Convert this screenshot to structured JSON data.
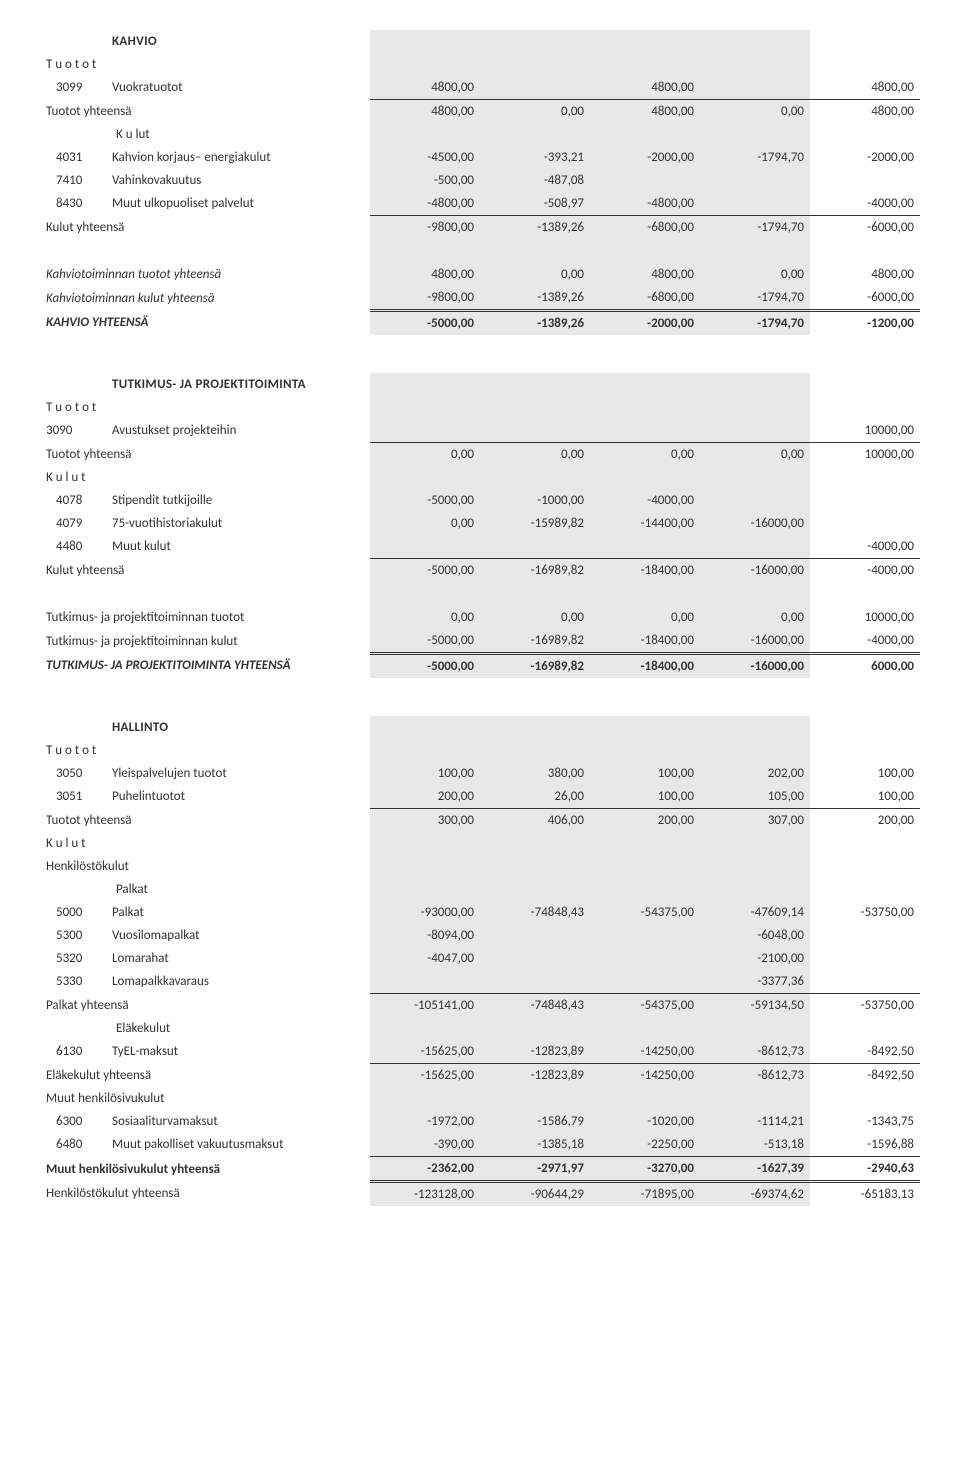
{
  "kahvio": {
    "title": "KAHVIO",
    "tuotot_label": "T u o t o t",
    "r3099": {
      "code": "3099",
      "label": "Vuokratuotot",
      "c1": "4800,00",
      "c3": "4800,00",
      "c5": "4800,00"
    },
    "tuotot_yht": {
      "label": "Tuotot yhteensä",
      "c1": "4800,00",
      "c2": "0,00",
      "c3": "4800,00",
      "c4": "0,00",
      "c5": "4800,00"
    },
    "kulut_label": "K u lut",
    "r4031": {
      "code": "4031",
      "label": "Kahvion korjaus– energiakulut",
      "c1": "-4500,00",
      "c2": "-393,21",
      "c3": "-2000,00",
      "c4": "-1794,70",
      "c5": "-2000,00"
    },
    "r7410": {
      "code": "7410",
      "label": "Vahinkovakuutus",
      "c1": "-500,00",
      "c2": "-487,08"
    },
    "r8430": {
      "code": "8430",
      "label": "Muut ulkopuoliset palvelut",
      "c1": "-4800,00",
      "c2": "-508,97",
      "c3": "-4800,00",
      "c5": "-4000,00"
    },
    "kulut_yht": {
      "label": "Kulut yhteensä",
      "c1": "-9800,00",
      "c2": "-1389,26",
      "c3": "-6800,00",
      "c4": "-1794,70",
      "c5": "-6000,00"
    },
    "toim_tuotot": {
      "label": "Kahviotoiminnan tuotot yhteensä",
      "c1": "4800,00",
      "c2": "0,00",
      "c3": "4800,00",
      "c4": "0,00",
      "c5": "4800,00"
    },
    "toim_kulut": {
      "label": "Kahviotoiminnan kulut yhteensä",
      "c1": "-9800,00",
      "c2": "-1389,26",
      "c3": "-6800,00",
      "c4": "-1794,70",
      "c5": "-6000,00"
    },
    "yhteensa": {
      "label": "KAHVIO YHTEENSÄ",
      "c1": "-5000,00",
      "c2": "-1389,26",
      "c3": "-2000,00",
      "c4": "-1794,70",
      "c5": "-1200,00"
    }
  },
  "tutkimus": {
    "title": "TUTKIMUS- JA PROJEKTITOIMINTA",
    "tuotot_label": "T u o t o t",
    "r3090": {
      "code": "3090",
      "label": "Avustukset projekteihin",
      "c5": "10000,00"
    },
    "tuotot_yht": {
      "label": "Tuotot yhteensä",
      "c1": "0,00",
      "c2": "0,00",
      "c3": "0,00",
      "c4": "0,00",
      "c5": "10000,00"
    },
    "kulut_label": "K u l u t",
    "r4078": {
      "code": "4078",
      "label": "Stipendit tutkijoille",
      "c1": "-5000,00",
      "c2": "-1000,00",
      "c3": "-4000,00"
    },
    "r4079": {
      "code": "4079",
      "label": "75-vuotihistoriakulut",
      "c1": "0,00",
      "c2": "-15989,82",
      "c3": "-14400,00",
      "c4": "-16000,00"
    },
    "r4480": {
      "code": "4480",
      "label": "Muut kulut",
      "c5": "-4000,00"
    },
    "kulut_yht": {
      "label": "Kulut yhteensä",
      "c1": "-5000,00",
      "c2": "-16989,82",
      "c3": "-18400,00",
      "c4": "-16000,00",
      "c5": "-4000,00"
    },
    "toim_tuotot": {
      "label": "Tutkimus- ja projektitoiminnan tuotot",
      "c1": "0,00",
      "c2": "0,00",
      "c3": "0,00",
      "c4": "0,00",
      "c5": "10000,00"
    },
    "toim_kulut": {
      "label": "Tutkimus- ja projektitoiminnan kulut",
      "c1": "-5000,00",
      "c2": "-16989,82",
      "c3": "-18400,00",
      "c4": "-16000,00",
      "c5": "-4000,00"
    },
    "yhteensa": {
      "label": "TUTKIMUS- JA PROJEKTITOIMINTA YHTEENSÄ",
      "c1": "-5000,00",
      "c2": "-16989,82",
      "c3": "-18400,00",
      "c4": "-16000,00",
      "c5": "6000,00"
    }
  },
  "hallinto": {
    "title": "HALLINTO",
    "tuotot_label": "T u o t o t",
    "r3050": {
      "code": "3050",
      "label": "Yleispalvelujen tuotot",
      "c1": "100,00",
      "c2": "380,00",
      "c3": "100,00",
      "c4": "202,00",
      "c5": "100,00"
    },
    "r3051": {
      "code": "3051",
      "label": "Puhelintuotot",
      "c1": "200,00",
      "c2": "26,00",
      "c3": "100,00",
      "c4": "105,00",
      "c5": "100,00"
    },
    "tuotot_yht": {
      "label": "Tuotot yhteensä",
      "c1": "300,00",
      "c2": "406,00",
      "c3": "200,00",
      "c4": "307,00",
      "c5": "200,00"
    },
    "kulut_label": "K u l u t",
    "hk_label": "Henkilöstökulut",
    "palkat_label": "Palkat",
    "r5000": {
      "code": "5000",
      "label": "Palkat",
      "c1": "-93000,00",
      "c2": "-74848,43",
      "c3": "-54375,00",
      "c4": "-47609,14",
      "c5": "-53750,00"
    },
    "r5300": {
      "code": "5300",
      "label": "Vuosilomapalkat",
      "c1": "-8094,00",
      "c4": "-6048,00"
    },
    "r5320": {
      "code": "5320",
      "label": "Lomarahat",
      "c1": "-4047,00",
      "c4": "-2100,00"
    },
    "r5330": {
      "code": "5330",
      "label": "Lomapalkkavaraus",
      "c4": "-3377,36"
    },
    "palkat_yht": {
      "label": "Palkat yhteensä",
      "c1": "-105141,00",
      "c2": "-74848,43",
      "c3": "-54375,00",
      "c4": "-59134,50",
      "c5": "-53750,00"
    },
    "elake_label": "Eläkekulut",
    "r6130": {
      "code": "6130",
      "label": "TyEL-maksut",
      "c1": "-15625,00",
      "c2": "-12823,89",
      "c3": "-14250,00",
      "c4": "-8612,73",
      "c5": "-8492,50"
    },
    "elake_yht": {
      "label": "Eläkekulut yhteensä",
      "c1": "-15625,00",
      "c2": "-12823,89",
      "c3": "-14250,00",
      "c4": "-8612,73",
      "c5": "-8492,50"
    },
    "muut_hs_label": "Muut henkilösivukulut",
    "r6300": {
      "code": "6300",
      "label": "Sosiaaliturvamaksut",
      "c1": "-1972,00",
      "c2": "-1586,79",
      "c3": "-1020,00",
      "c4": "-1114,21",
      "c5": "-1343,75"
    },
    "r6480": {
      "code": "6480",
      "label": "Muut pakolliset  vakuutusmaksut",
      "c1": "-390,00",
      "c2": "-1385,18",
      "c3": "-2250,00",
      "c4": "-513,18",
      "c5": "-1596,88"
    },
    "muut_hs_yht": {
      "label": "Muut henkilösivukulut yhteensä",
      "c1": "-2362,00",
      "c2": "-2971,97",
      "c3": "-3270,00",
      "c4": "-1627,39",
      "c5": "-2940,63"
    },
    "hk_yht": {
      "label": "Henkilöstökulut yhteensä",
      "c1": "-123128,00",
      "c2": "-90644,29",
      "c3": "-71895,00",
      "c4": "-69374,62",
      "c5": "-65183,13"
    }
  }
}
